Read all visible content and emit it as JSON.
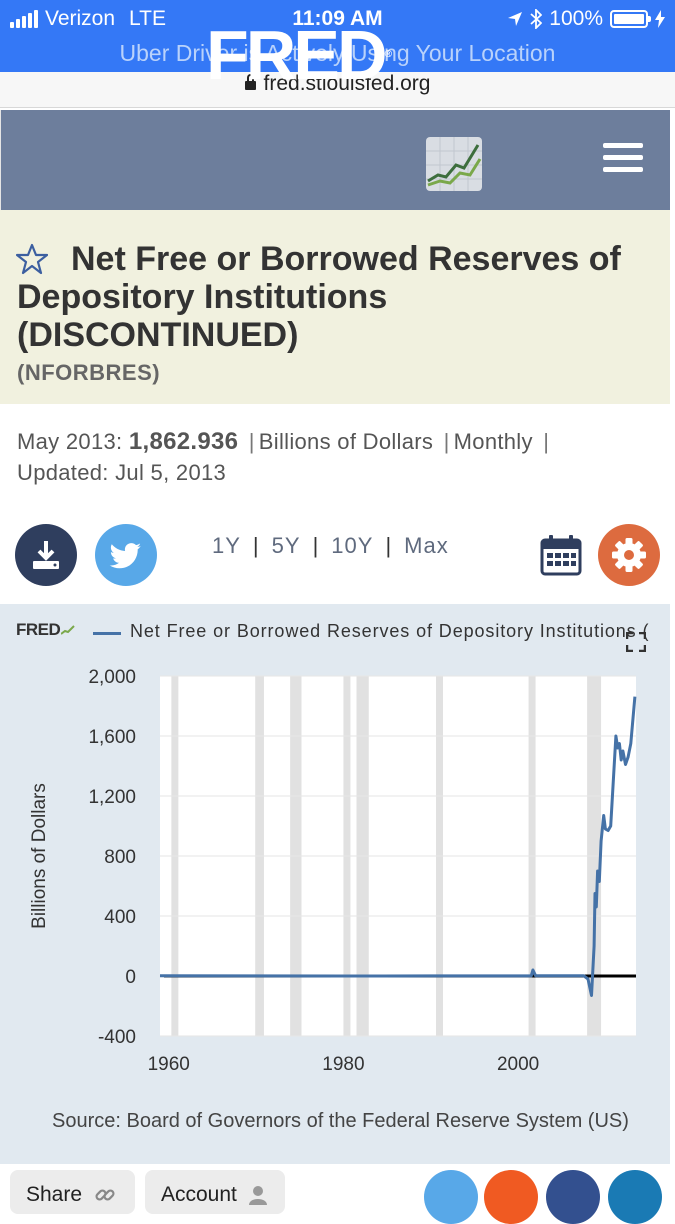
{
  "status_bar": {
    "carrier": "Verizon",
    "network": "LTE",
    "time": "11:09 AM",
    "battery": "100%"
  },
  "location_banner": "Uber Driver is Actively Using Your Location",
  "url": "fred.stlouisfed.org",
  "header": {
    "logo": "FRED",
    "logo_mark": "®"
  },
  "series": {
    "title": "Net Free or Borrowed Reserves of Depository Institutions (DISCONTINUED)",
    "id": "(NFORBRES)",
    "date": "May 2013:",
    "value": "1,862.936",
    "units": "Billions of Dollars",
    "frequency": "Monthly",
    "updated_label": "Updated:",
    "updated": "Jul 5, 2013"
  },
  "ranges": [
    "1Y",
    "5Y",
    "10Y",
    "Max"
  ],
  "icons": {
    "download": "download-icon",
    "twitter": "twitter-icon",
    "calendar": "calendar-icon",
    "settings": "gear-icon",
    "star": "star-icon",
    "menu": "hamburger-menu-icon"
  },
  "colors": {
    "header": "#6d7e9c",
    "title_bg": "#f1f1df",
    "series_line": "#4572a7",
    "settings": "#dd6b3f",
    "download": "#2f3e5e"
  },
  "chart": {
    "brand": "FRED",
    "title": "Net Free or Borrowed Reserves of Depository Institutions (DISCONTINUED)",
    "source": "Source: Board of Governors of the Federal Reserve System (US)"
  },
  "chart_data": {
    "type": "line",
    "title": "Net Free or Borrowed Reserves of Depository Institutions",
    "ylabel": "Billions of Dollars",
    "xlabel": "",
    "ylim": [
      -400,
      2000
    ],
    "xlim": [
      1959,
      2013.5
    ],
    "yticks": [
      "-400",
      "0",
      "400",
      "800",
      "1,200",
      "1,600",
      "2,000"
    ],
    "xticks": [
      "1960",
      "1980",
      "2000"
    ],
    "grid": true,
    "recessions": [
      [
        1960.3,
        1961.1
      ],
      [
        1969.9,
        1970.9
      ],
      [
        1973.9,
        1975.2
      ],
      [
        1980.0,
        1980.6
      ],
      [
        1981.5,
        1982.9
      ],
      [
        1990.6,
        1991.2
      ],
      [
        2001.2,
        2001.9
      ],
      [
        2007.9,
        2009.5
      ]
    ],
    "series": [
      {
        "name": "Net Free or Borrowed Reserves of Depository Institutions",
        "x": [
          1959.0,
          1970.0,
          1980.0,
          1990.0,
          2000.0,
          2001.5,
          2001.7,
          2002.0,
          2007.5,
          2008.0,
          2008.4,
          2008.7,
          2008.8,
          2008.95,
          2009.1,
          2009.3,
          2009.5,
          2009.8,
          2010.0,
          2010.3,
          2010.6,
          2010.9,
          2011.2,
          2011.4,
          2011.6,
          2011.8,
          2012.0,
          2012.3,
          2012.6,
          2012.9,
          2013.1,
          2013.37
        ],
        "values": [
          2,
          1,
          0,
          1,
          1,
          1,
          40,
          2,
          2,
          -20,
          -130,
          200,
          550,
          460,
          700,
          630,
          900,
          1070,
          980,
          970,
          1000,
          1300,
          1600,
          1520,
          1550,
          1440,
          1500,
          1410,
          1460,
          1550,
          1680,
          1862.936
        ]
      }
    ]
  },
  "footer": {
    "share": "Share",
    "account": "Account"
  }
}
